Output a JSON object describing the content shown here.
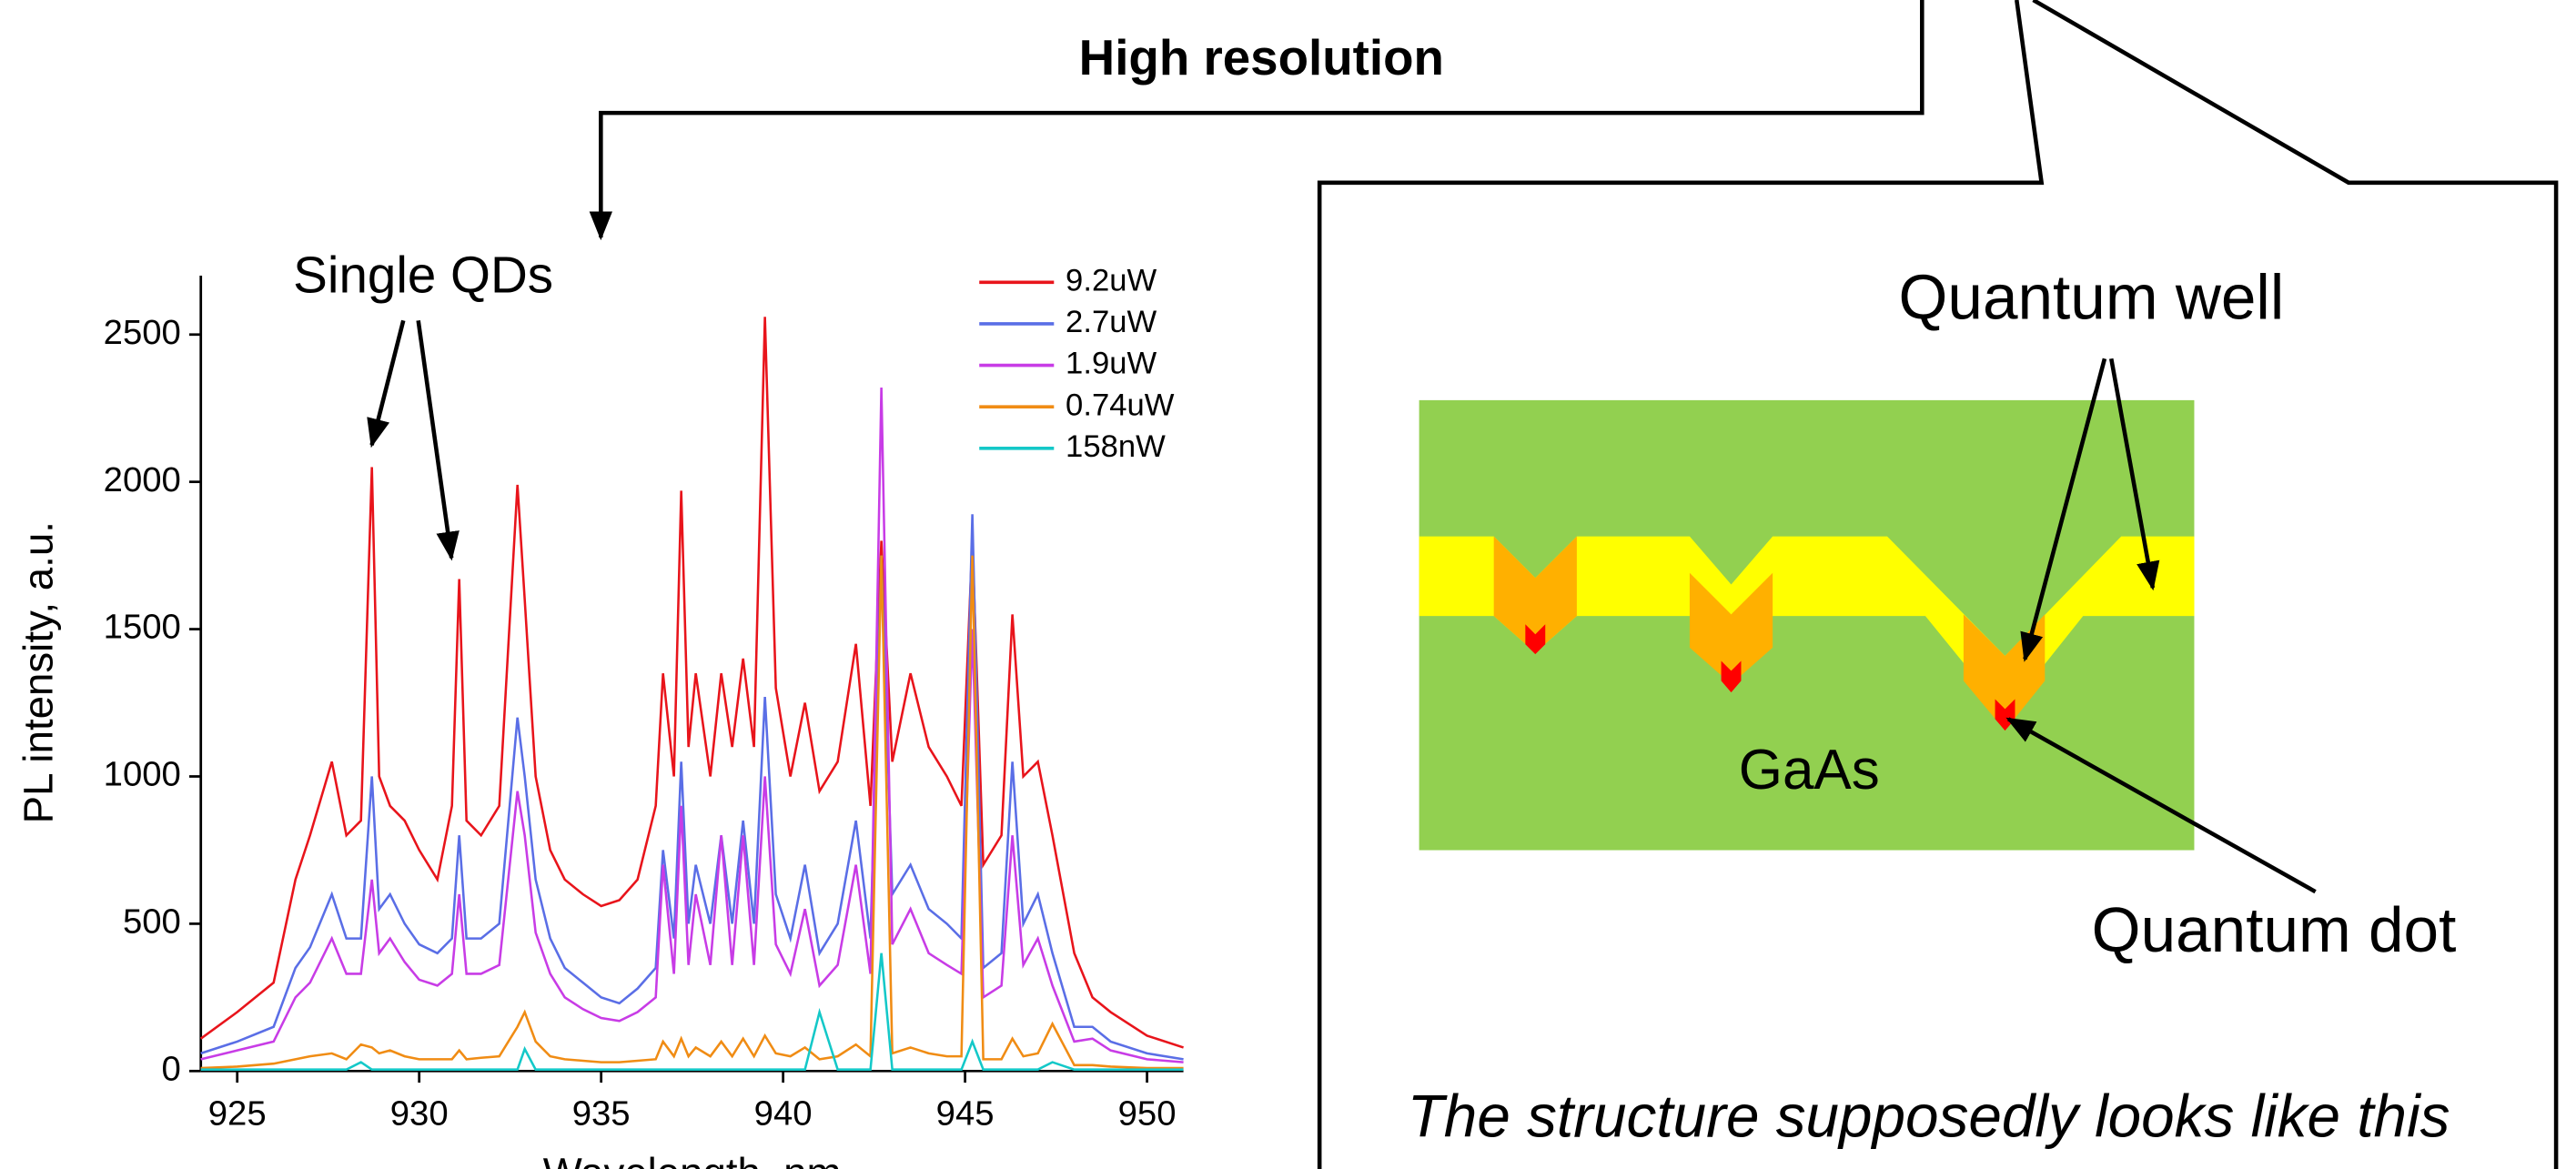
{
  "chart_data": {
    "type": "line",
    "x": [
      924,
      925,
      926,
      926.6,
      927,
      927.6,
      928,
      928.4,
      928.7,
      928.9,
      929.2,
      929.6,
      930,
      930.5,
      930.9,
      931.1,
      931.3,
      931.7,
      932.2,
      932.7,
      932.9,
      933.2,
      933.6,
      934,
      934.5,
      935,
      935.5,
      936,
      936.5,
      936.7,
      937,
      937.2,
      937.4,
      937.6,
      938,
      938.3,
      938.6,
      938.9,
      939.2,
      939.5,
      939.8,
      940.2,
      940.6,
      941,
      941.5,
      942,
      942.4,
      942.7,
      943,
      943.5,
      944,
      944.5,
      944.9,
      945.2,
      945.5,
      946,
      946.3,
      946.6,
      947,
      947.4,
      948,
      948.5,
      949,
      950,
      951
    ],
    "series": [
      {
        "name": "9.2uW",
        "color": "#e8141b",
        "values": [
          110,
          200,
          300,
          650,
          800,
          1050,
          800,
          850,
          2050,
          1000,
          900,
          850,
          750,
          650,
          900,
          1670,
          850,
          800,
          900,
          1990,
          1600,
          1000,
          750,
          650,
          600,
          560,
          580,
          650,
          900,
          1350,
          1000,
          1970,
          1100,
          1350,
          1000,
          1350,
          1100,
          1400,
          1100,
          2560,
          1300,
          1000,
          1250,
          950,
          1050,
          1450,
          900,
          1800,
          1050,
          1350,
          1100,
          1000,
          900,
          1800,
          700,
          800,
          1550,
          1000,
          1050,
          800,
          400,
          250,
          200,
          120,
          80
        ]
      },
      {
        "name": "2.7uW",
        "color": "#5a6ee6",
        "values": [
          60,
          100,
          150,
          350,
          420,
          600,
          450,
          450,
          1000,
          550,
          600,
          500,
          430,
          400,
          450,
          800,
          450,
          450,
          500,
          1200,
          1000,
          650,
          450,
          350,
          300,
          250,
          230,
          280,
          350,
          750,
          450,
          1050,
          500,
          700,
          500,
          800,
          500,
          850,
          500,
          1270,
          600,
          450,
          700,
          400,
          500,
          850,
          450,
          1750,
          600,
          700,
          550,
          500,
          450,
          1890,
          350,
          400,
          1050,
          500,
          600,
          400,
          150,
          150,
          100,
          60,
          40
        ]
      },
      {
        "name": "1.9uW",
        "color": "#c83ce6",
        "values": [
          40,
          70,
          100,
          250,
          300,
          450,
          330,
          330,
          650,
          400,
          450,
          370,
          310,
          290,
          330,
          600,
          330,
          330,
          360,
          950,
          800,
          470,
          330,
          250,
          210,
          180,
          170,
          200,
          250,
          700,
          330,
          900,
          360,
          600,
          360,
          800,
          360,
          800,
          360,
          1000,
          430,
          330,
          550,
          290,
          360,
          700,
          330,
          2320,
          430,
          550,
          400,
          360,
          330,
          1500,
          250,
          290,
          800,
          360,
          450,
          290,
          100,
          110,
          70,
          40,
          30
        ]
      },
      {
        "name": "0.74uW",
        "color": "#f08c14",
        "values": [
          10,
          15,
          25,
          40,
          50,
          60,
          40,
          90,
          80,
          60,
          70,
          50,
          40,
          40,
          40,
          70,
          40,
          45,
          50,
          150,
          200,
          100,
          50,
          40,
          35,
          30,
          30,
          35,
          40,
          100,
          50,
          110,
          50,
          80,
          50,
          100,
          50,
          110,
          50,
          120,
          60,
          50,
          80,
          40,
          50,
          90,
          50,
          1750,
          60,
          80,
          60,
          50,
          50,
          1750,
          40,
          40,
          110,
          50,
          60,
          160,
          20,
          20,
          15,
          10,
          10
        ]
      },
      {
        "name": "158nW",
        "color": "#14c8c8",
        "values": [
          5,
          5,
          5,
          5,
          5,
          5,
          5,
          30,
          5,
          5,
          5,
          5,
          5,
          5,
          5,
          5,
          5,
          5,
          5,
          5,
          75,
          5,
          5,
          5,
          5,
          5,
          5,
          5,
          5,
          5,
          5,
          5,
          5,
          5,
          5,
          5,
          5,
          5,
          5,
          5,
          5,
          5,
          5,
          200,
          5,
          5,
          5,
          400,
          5,
          5,
          5,
          5,
          5,
          100,
          5,
          5,
          5,
          5,
          5,
          30,
          5,
          5,
          5,
          5,
          5
        ]
      }
    ],
    "xlim": [
      924,
      951
    ],
    "ylim": [
      0,
      2700
    ],
    "xticks": [
      925,
      930,
      935,
      940,
      945,
      950
    ],
    "yticks": [
      0,
      500,
      1000,
      1500,
      2000,
      2500
    ],
    "x_label": "Wavelength, nm",
    "y_label": "PL intensity, a.u.",
    "annotation": "Single QDs"
  },
  "diagram": {
    "title": "High resolution",
    "quantum_well": "Quantum well",
    "gaas": "GaAs",
    "quantum_dot": "Quantum dot",
    "caption": "The structure supposedly looks like this"
  }
}
